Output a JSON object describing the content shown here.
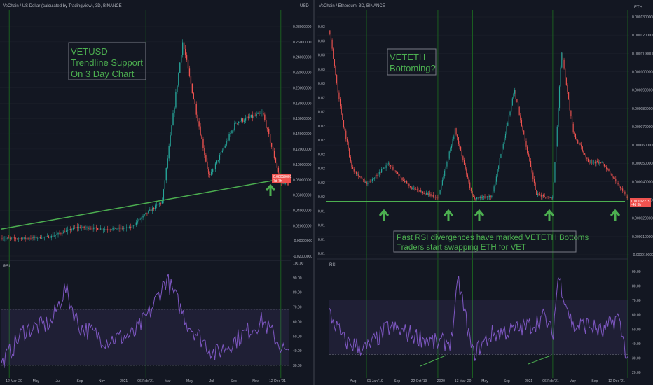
{
  "colors": {
    "background": "#131722",
    "grid": "#1e222d",
    "up": "#26a69a",
    "down": "#ef5350",
    "rsi": "#7e57c2",
    "trend": "#4caf50",
    "annotation": "#4caf50",
    "vline": "#1b5e20",
    "axis_text": "#b2b5be",
    "price_badge": "#ef5350"
  },
  "chart_data": [
    {
      "type": "line",
      "panel": "left-price",
      "title": "VeChain / US Dollar (calculated by TradingView), 3D, BINANCE",
      "unit_label": "USD",
      "y_ticks": [
        "0.28000000",
        "0.26000000",
        "0.24000000",
        "0.22000000",
        "0.20000000",
        "0.18000000",
        "0.16000000",
        "0.14000000",
        "0.12000000",
        "0.10000000",
        "0.08000000",
        "0.06000000",
        "0.04000000",
        "0.02000000",
        "-0.00000000",
        "-0.02000000"
      ],
      "ylim": [
        -0.02,
        0.29
      ],
      "price_badge": [
        "0.08059601",
        "7d 7h"
      ],
      "x": [
        "2020-03-12",
        "2020-05-01",
        "2020-07-01",
        "2020-09-01",
        "2020-11-01",
        "2021-01-01",
        "2021-02-06",
        "2021-03-15",
        "2021-05-01",
        "2021-07-01",
        "2021-09-01",
        "2021-11-01",
        "2021-12-12",
        "2021-12-30"
      ],
      "values": [
        0.004,
        0.004,
        0.006,
        0.018,
        0.016,
        0.017,
        0.035,
        0.05,
        0.25,
        0.08,
        0.15,
        0.16,
        0.075,
        0.072
      ],
      "trendline": {
        "x": [
          "2020-03-12",
          "2021-12-30"
        ],
        "values": [
          0.0,
          0.08
        ]
      },
      "x_tick_labels": [
        "12 Mar '20",
        "May",
        "Jul",
        "Sep",
        "Nov",
        "2021",
        "06 Feb '21",
        "Mar",
        "May",
        "Jul",
        "Sep",
        "Nov",
        "12 Dec '21"
      ],
      "annotation": [
        "VETUSD",
        "Trendline Support",
        "On 3 Day Chart"
      ]
    },
    {
      "type": "line",
      "panel": "left-rsi",
      "title": "RSI",
      "y_ticks": [
        "100.00",
        "90.00",
        "80.00",
        "70.00",
        "60.00",
        "50.00",
        "40.00",
        "30.00"
      ],
      "ylim": [
        26,
        102
      ],
      "band": [
        30,
        70
      ],
      "x": [
        "2020-03-12",
        "2020-05-01",
        "2020-07-01",
        "2020-08-01",
        "2020-09-01",
        "2020-11-01",
        "2021-01-01",
        "2021-02-06",
        "2021-03-15",
        "2021-05-01",
        "2021-07-01",
        "2021-09-01",
        "2021-10-15",
        "2021-12-12"
      ],
      "values": [
        30,
        55,
        60,
        85,
        58,
        48,
        52,
        68,
        92,
        60,
        38,
        52,
        62,
        36
      ]
    },
    {
      "type": "line",
      "panel": "right-price",
      "title": "VeChain / Ethereum, 3D, BINANCE",
      "unit_label": "ETH",
      "y_ticks": [
        "0.0001300000",
        "0.0001200000",
        "0.0001100000",
        "0.0001000000",
        "0.0000900000",
        "0.0000800000",
        "0.0000700000",
        "0.0000600000",
        "0.0000500000",
        "0.0000400000",
        "0.0000300000",
        "0.0000200000",
        "0.0000100000",
        "-0.0000100000"
      ],
      "y_ticks_inner": [
        "0.03",
        "0.03",
        "0.03",
        "0.03",
        "0.03",
        "0.02",
        "0.02",
        "0.02",
        "0.02",
        "0.02",
        "0.02",
        "0.02",
        "0.02",
        "0.01",
        "0.01",
        "0.01",
        "0.01"
      ],
      "ylim": [
        -1.2e-05,
        0.000132
      ],
      "price_badge": [
        "0.00002275",
        "-4d 3h"
      ],
      "x": [
        "2018-08-01",
        "2018-09-15",
        "2018-11-01",
        "2019-01-01",
        "2019-04-01",
        "2019-07-01",
        "2019-10-22",
        "2020-01-01",
        "2020-03-13",
        "2020-06-01",
        "2020-09-01",
        "2020-12-01",
        "2021-02-06",
        "2021-03-15",
        "2021-05-01",
        "2021-07-01",
        "2021-09-01",
        "2021-12-12"
      ],
      "values": [
        0.00012,
        7.5e-05,
        4e-05,
        3e-05,
        4.2e-05,
        2.8e-05,
        2.2e-05,
        6.2e-05,
        2.2e-05,
        2.3e-05,
        8.5e-05,
        2.4e-05,
        2.2e-05,
        0.000108,
        6e-05,
        4.4e-05,
        4.2e-05,
        2.2e-05
      ],
      "support_level": 2e-05,
      "x_tick_labels": [
        "Aug",
        "01 Jan '19",
        "Sep",
        "22 Oct '19",
        "2020",
        "13 Mar '20",
        "May",
        "Sep",
        "2021",
        "06 Feb '21",
        "May",
        "Sep",
        "12 Dec '21"
      ],
      "annotation_top": [
        "VETETH",
        "Bottoming?"
      ],
      "annotation_bottom": [
        "Past RSI divergences have marked VETETH Bottoms",
        "Traders start swapping ETH for VET"
      ]
    },
    {
      "type": "line",
      "panel": "right-rsi",
      "title": "RSI",
      "y_ticks": [
        "90.00",
        "80.00",
        "70.00",
        "60.00",
        "50.00",
        "40.00",
        "30.00",
        "20.00"
      ],
      "ylim": [
        18,
        96
      ],
      "band": [
        30,
        70
      ],
      "x": [
        "2018-08-01",
        "2018-10-01",
        "2019-01-01",
        "2019-04-01",
        "2019-07-01",
        "2019-10-22",
        "2019-12-15",
        "2020-01-15",
        "2020-03-13",
        "2020-06-01",
        "2020-09-01",
        "2020-11-15",
        "2021-01-01",
        "2021-02-06",
        "2021-03-01",
        "2021-05-01",
        "2021-07-01",
        "2021-09-01",
        "2021-11-01",
        "2021-12-12"
      ],
      "values": [
        60,
        40,
        34,
        50,
        45,
        38,
        40,
        84,
        30,
        45,
        48,
        52,
        58,
        44,
        88,
        50,
        52,
        46,
        58,
        26
      ]
    }
  ]
}
